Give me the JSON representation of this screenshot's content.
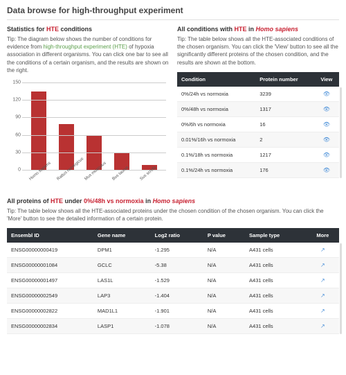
{
  "page_title": "Data browse for high-throughput experiment",
  "left": {
    "title_prefix": "Statistics for ",
    "title_hte": "HTE",
    "title_suffix": " conditions",
    "tip_a": "Tip: The diagram below shows the number of conditions for evidence from ",
    "tip_link": "high-throughput experiment (HTE)",
    "tip_b": " of hypoxia association in different organisms. You can click one bar to see all the conditions of a certain organism, and the results are shown on the right."
  },
  "right": {
    "title_prefix": "All conditions with ",
    "title_hte": "HTE",
    "title_mid": " in ",
    "title_org": "Homo sapiens",
    "tip": "Tip: The table below shows all the HTE-associated conditions of the chosen organism. You can click the 'View' button to see all the significantly different proteins of the chosen condition, and the results are shown at the bottom."
  },
  "chart": {
    "type": "bar",
    "ylim": [
      0,
      150
    ],
    "yticks": [
      0,
      30,
      60,
      90,
      120,
      150
    ],
    "bar_color": "#b93232",
    "grid_color": "#cccccc",
    "categories": [
      "Homo sapiens",
      "Rattus norvegicus",
      "Mus musculus",
      "Bos taurus",
      "Sus scrofa"
    ],
    "values": [
      135,
      78,
      58,
      30,
      8
    ]
  },
  "cond_table": {
    "headers": [
      "Condition",
      "Protein number",
      "View"
    ],
    "rows": [
      {
        "condition": "0%/24h vs normoxia",
        "num": "3239"
      },
      {
        "condition": "0%/48h vs normoxia",
        "num": "1317"
      },
      {
        "condition": "0%/6h vs normoxia",
        "num": "16"
      },
      {
        "condition": "0.01%/16h vs normoxia",
        "num": "2"
      },
      {
        "condition": "0.1%/18h vs normoxia",
        "num": "1217"
      },
      {
        "condition": "0.1%/24h vs normoxia",
        "num": "176"
      }
    ]
  },
  "proteins": {
    "title_prefix": "All proteins of ",
    "title_hte": "HTE",
    "title_mid1": " under ",
    "title_cond": "0%/48h vs normoxia",
    "title_mid2": " in ",
    "title_org": "Homo sapiens",
    "tip": "Tip: The table below shows all the HTE-associated proteins under the chosen condition of the chosen organism. You can click the 'More' button to see the detailed information of a certain protein.",
    "headers": [
      "Ensembl ID",
      "Gene name",
      "Log2 ratio",
      "P value",
      "Sample type",
      "More"
    ],
    "rows": [
      {
        "id": "ENSG00000000419",
        "gene": "DPM1",
        "log2": "-1.295",
        "p": "N/A",
        "sample": "A431 cells"
      },
      {
        "id": "ENSG00000001084",
        "gene": "GCLC",
        "log2": "-5.38",
        "p": "N/A",
        "sample": "A431 cells"
      },
      {
        "id": "ENSG00000001497",
        "gene": "LAS1L",
        "log2": "-1.529",
        "p": "N/A",
        "sample": "A431 cells"
      },
      {
        "id": "ENSG00000002549",
        "gene": "LAP3",
        "log2": "-1.404",
        "p": "N/A",
        "sample": "A431 cells"
      },
      {
        "id": "ENSG00000002822",
        "gene": "MAD1L1",
        "log2": "-1.901",
        "p": "N/A",
        "sample": "A431 cells"
      },
      {
        "id": "ENSG00000002834",
        "gene": "LASP1",
        "log2": "-1.078",
        "p": "N/A",
        "sample": "A431 cells"
      }
    ]
  }
}
